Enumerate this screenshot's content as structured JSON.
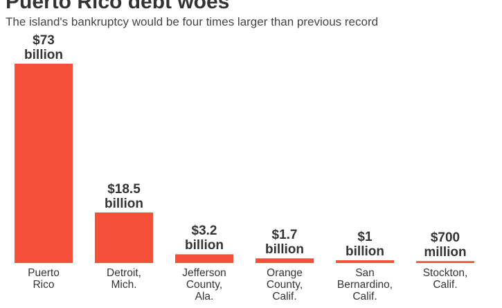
{
  "chart_data": {
    "type": "bar",
    "title": "Puerto Rico debt woes",
    "subtitle": "The island's bankruptcy would be four times larger than previous record",
    "categories": [
      "Puerto\nRico",
      "Detroit,\nMich.",
      "Jefferson\nCounty,\nAla.",
      "Orange\nCounty,\nCalif.",
      "San\nBernardino,\nCalif.",
      "Stockton,\nCalif."
    ],
    "values": [
      73,
      18.5,
      3.2,
      1.7,
      1,
      0.7
    ],
    "value_labels": [
      "$73\nbillion",
      "$18.5\nbillion",
      "$3.2\nbillion",
      "$1.7\nbillion",
      "$1\nbillion",
      "$700\nmillion"
    ],
    "color": "#f4503a"
  }
}
